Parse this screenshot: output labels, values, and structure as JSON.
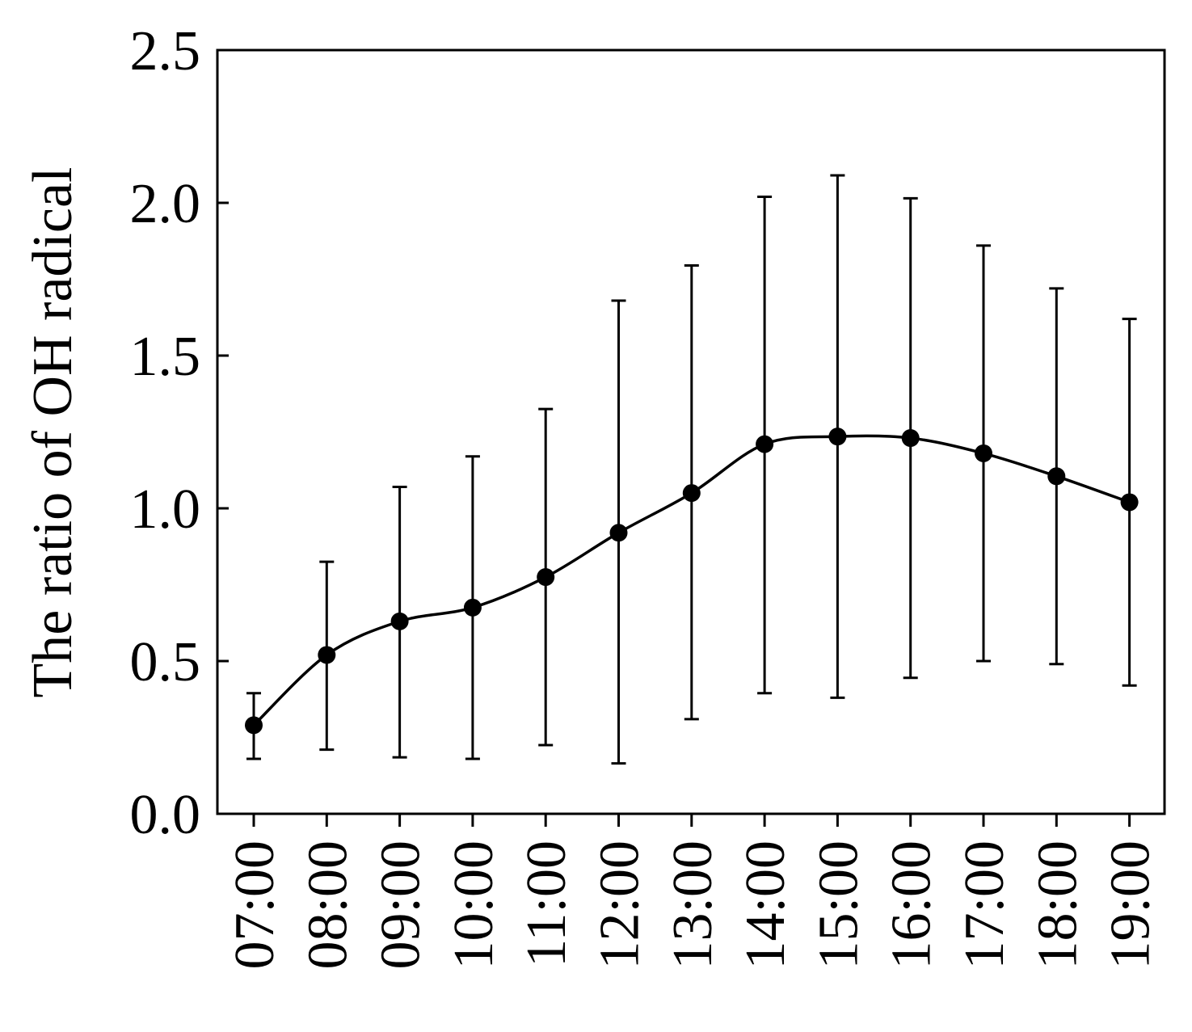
{
  "chart_data": {
    "type": "line",
    "title": "",
    "xlabel": "",
    "ylabel": "The ratio of OH radical",
    "categories": [
      "07:00",
      "08:00",
      "09:00",
      "10:00",
      "11:00",
      "12:00",
      "13:00",
      "14:00",
      "15:00",
      "16:00",
      "17:00",
      "18:00",
      "19:00"
    ],
    "values": [
      0.29,
      0.52,
      0.63,
      0.675,
      0.775,
      0.92,
      1.05,
      1.21,
      1.235,
      1.23,
      1.18,
      1.105,
      1.02
    ],
    "error_low": [
      0.18,
      0.21,
      0.185,
      0.18,
      0.225,
      0.165,
      0.31,
      0.395,
      0.38,
      0.445,
      0.5,
      0.49,
      0.42
    ],
    "error_high": [
      0.395,
      0.825,
      1.07,
      1.17,
      1.325,
      1.68,
      1.795,
      2.02,
      2.09,
      2.015,
      1.86,
      1.72,
      1.62
    ],
    "ylim": [
      0,
      2.5
    ],
    "yticks": [
      "0.0",
      "0.5",
      "1.0",
      "1.5",
      "2.0",
      "2.5"
    ],
    "grid": false,
    "legend": "none",
    "colors": {
      "line": "#000000",
      "marker": "#000000"
    }
  }
}
